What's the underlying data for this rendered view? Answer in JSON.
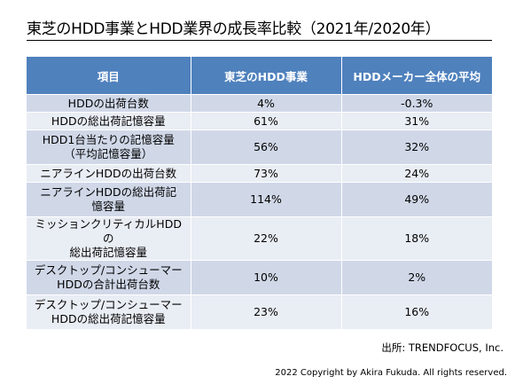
{
  "title": "東芝のHDD事業とHDD業界の成長率比較（2021年/2020年）",
  "table": {
    "headers": [
      "項目",
      "東芝のHDD事業",
      "HDDメーカー全体の平均"
    ],
    "rows": [
      {
        "item_line1": "HDDの出荷台数",
        "item_line2": "",
        "toshiba": "4%",
        "average": "-0.3%"
      },
      {
        "item_line1": "HDDの総出荷記憶容量",
        "item_line2": "",
        "toshiba": "61%",
        "average": "31%"
      },
      {
        "item_line1": "HDD1台当たりの記憶容量",
        "item_line2": "（平均記憶容量）",
        "toshiba": "56%",
        "average": "32%"
      },
      {
        "item_line1": "ニアラインHDDの出荷台数",
        "item_line2": "",
        "toshiba": "73%",
        "average": "24%"
      },
      {
        "item_line1": "ニアラインHDDの総出荷記",
        "item_line2": "憶容量",
        "toshiba": "114%",
        "average": "49%"
      },
      {
        "item_line1": "ミッションクリティカルHDDの",
        "item_line2": "総出荷記憶容量",
        "toshiba": "22%",
        "average": "18%"
      },
      {
        "item_line1": "デスクトップ/コンシューマー",
        "item_line2": "HDDの合計出荷台数",
        "toshiba": "10%",
        "average": "2%"
      },
      {
        "item_line1": "デスクトップ/コンシューマー",
        "item_line2": "HDDの総出荷記憶容量",
        "toshiba": "23%",
        "average": "16%"
      }
    ]
  },
  "source": "出所: TRENDFOCUS,  Inc.",
  "copyright": "2022 Copyright by Akira Fukuda. All rights reserved.",
  "colors": {
    "header_bg": "#4f81bd",
    "row_band_dark": "#d0d8e8",
    "row_band_light": "#e9edf4"
  }
}
